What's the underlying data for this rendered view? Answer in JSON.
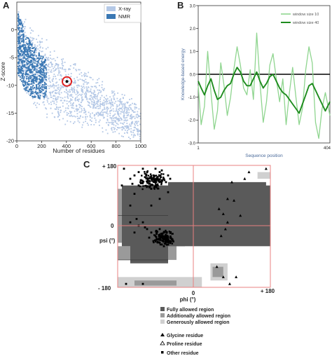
{
  "panels": {
    "a_letter": "A",
    "b_letter": "B",
    "c_letter": "C"
  },
  "chart_data": [
    {
      "panel": "A",
      "type": "scatter",
      "xlabel": "Number of residues",
      "ylabel": "Z-score",
      "xlim": [
        0,
        1000
      ],
      "ylim": [
        -20,
        5
      ],
      "x_ticks": [
        "0",
        "200",
        "400",
        "600",
        "800",
        "1000"
      ],
      "y_ticks": [
        "0",
        "-5",
        "-10",
        "-15",
        "-20"
      ],
      "x_tick_values": [
        0,
        200,
        400,
        600,
        800,
        1000
      ],
      "y_tick_values": [
        0,
        -5,
        -10,
        -15,
        -20
      ],
      "legend": [
        "X-ray",
        "NMR"
      ],
      "legend_position": "top-right",
      "colors": {
        "X-ray": "#b4c8e6",
        "NMR": "#3b78b4",
        "highlight": "#e02020"
      },
      "highlight": {
        "x": 404,
        "y": -9.3
      },
      "xray_band": {
        "x": [
          10,
          100,
          200,
          300,
          400,
          500,
          600,
          700,
          800,
          900,
          1000
        ],
        "y_upper": [
          3,
          0,
          -2,
          -4,
          -5.5,
          -7,
          -8.5,
          -10,
          -11.5,
          -12.5,
          -13.5
        ],
        "y_lower": [
          -8,
          -12,
          -14,
          -15.5,
          -16.5,
          -17,
          -17.5,
          -18,
          -18.5,
          -19,
          -19.5
        ]
      },
      "nmr_band": {
        "x": [
          10,
          60,
          120,
          180,
          240
        ],
        "y_upper": [
          3,
          0,
          -2.5,
          -4,
          -5.5
        ],
        "y_lower": [
          -8,
          -11,
          -12,
          -12.5,
          -12
        ]
      }
    },
    {
      "panel": "B",
      "type": "line",
      "xlabel": "Sequence position",
      "ylabel": "Knowledge-based energy",
      "xlim": [
        1,
        404
      ],
      "ylim": [
        -3,
        3
      ],
      "x_ticks": [
        "1",
        "404"
      ],
      "y_ticks": [
        "3.0",
        "2.0",
        "1.0",
        "0.0",
        "-1.0",
        "-2.0",
        "-3.0"
      ],
      "y_tick_values": [
        3,
        2,
        1,
        0,
        -1,
        -2,
        -3
      ],
      "legend_position": "top-right",
      "series": [
        {
          "name": "window size 10",
          "color": "#8fd58f",
          "x": [
            1,
            10,
            20,
            30,
            40,
            50,
            60,
            70,
            80,
            90,
            100,
            110,
            120,
            130,
            140,
            150,
            160,
            170,
            180,
            190,
            200,
            210,
            220,
            230,
            240,
            250,
            260,
            270,
            280,
            290,
            300,
            310,
            320,
            330,
            340,
            350,
            360,
            370,
            380,
            390,
            404
          ],
          "values": [
            -0.5,
            -2.2,
            -1.4,
            1.0,
            -0.8,
            -2.4,
            -1.6,
            0.5,
            -0.5,
            -1.8,
            -1.0,
            0.2,
            1.2,
            0.4,
            -0.6,
            -0.9,
            0.2,
            -1.1,
            1.8,
            -0.4,
            -2.1,
            -1.2,
            0.4,
            0.9,
            -0.2,
            -1.2,
            -0.2,
            -2.2,
            -0.8,
            0.3,
            -1.0,
            -2.2,
            -1.5,
            0.2,
            1.2,
            0.5,
            -2.1,
            -2.8,
            -1.5,
            -0.8,
            -1.8
          ]
        },
        {
          "name": "window size 40",
          "color": "#1e8c1e",
          "x": [
            1,
            10,
            20,
            30,
            40,
            50,
            60,
            70,
            80,
            90,
            100,
            110,
            120,
            130,
            140,
            150,
            160,
            170,
            180,
            190,
            200,
            210,
            220,
            230,
            240,
            250,
            260,
            270,
            280,
            290,
            300,
            310,
            320,
            330,
            340,
            350,
            360,
            370,
            380,
            390,
            404
          ],
          "values": [
            -0.3,
            -0.6,
            -0.9,
            -0.5,
            -0.2,
            -0.7,
            -1.1,
            -1.0,
            -0.7,
            -0.5,
            -0.4,
            0.0,
            0.3,
            0.1,
            -0.3,
            -0.5,
            -0.5,
            -0.2,
            0.1,
            -0.3,
            -0.6,
            -0.4,
            -0.1,
            0.0,
            -0.3,
            -0.6,
            -0.8,
            -0.9,
            -1.1,
            -1.3,
            -1.5,
            -1.7,
            -1.3,
            -0.9,
            -0.5,
            -0.4,
            -0.7,
            -1.0,
            -1.3,
            -1.6,
            -1.2
          ]
        }
      ]
    },
    {
      "panel": "C",
      "type": "scatter",
      "xlabel": "phi (°)",
      "ylabel": "psi (°)",
      "xlim": [
        -180,
        180
      ],
      "ylim": [
        -180,
        180
      ],
      "x_ticks": [
        "- 180",
        "0",
        "+ 180"
      ],
      "y_ticks": [
        "+ 180",
        "0",
        "- 180"
      ],
      "colors": {
        "fully": "#5a5a5a",
        "additionally": "#9a9a9a",
        "generously": "#d0d0d0",
        "grid": "#e88080",
        "residue": "#000000"
      },
      "regions": {
        "generously": [
          [
            -180,
            -30,
            180,
            90
          ],
          [
            -30,
            10,
            180,
            60
          ],
          [
            -180,
            -180,
            -30,
            -170
          ],
          [
            20,
            40,
            80,
            110
          ],
          [
            40,
            -50,
            90,
            40
          ],
          [
            150,
            160,
            180,
            140
          ],
          [
            40,
            -110,
            80,
            -160
          ],
          [
            -180,
            -180,
            20,
            -150
          ]
        ],
        "additionally": [
          [
            -180,
            -50,
            180,
            110
          ],
          [
            -50,
            -20,
            160,
            120
          ],
          [
            -180,
            -100,
            -40,
            -60
          ],
          [
            -140,
            -160,
            -40,
            -175
          ],
          [
            40,
            30,
            70,
            80
          ],
          [
            50,
            -30,
            70,
            20
          ],
          [
            45,
            -120,
            70,
            -150
          ]
        ],
        "fully": [
          [
            -170,
            -60,
            180,
            120
          ],
          [
            -60,
            -40,
            170,
            130
          ],
          [
            -150,
            -110,
            -60,
            30
          ],
          [
            -100,
            -40,
            -20,
            -60
          ],
          [
            -110,
            -60,
            -70,
            -80
          ]
        ]
      },
      "general_points": [
        [
          -120,
          130
        ],
        [
          -100,
          140
        ],
        [
          -80,
          160
        ],
        [
          -140,
          150
        ],
        [
          -130,
          120
        ],
        [
          -90,
          120
        ],
        [
          -70,
          140
        ],
        [
          -60,
          150
        ],
        [
          -110,
          160
        ],
        [
          -150,
          140
        ],
        [
          -100,
          110
        ],
        [
          -80,
          130
        ],
        [
          -120,
          170
        ],
        [
          -95,
          150
        ],
        [
          -65,
          130
        ],
        [
          -130,
          160
        ],
        [
          -145,
          125
        ],
        [
          -75,
          165
        ],
        [
          -105,
          125
        ],
        [
          -85,
          145
        ],
        [
          -115,
          145
        ],
        [
          -55,
          140
        ],
        [
          -125,
          135
        ],
        [
          -90,
          170
        ],
        [
          -70,
          -40
        ],
        [
          -65,
          -45
        ],
        [
          -60,
          -35
        ],
        [
          -75,
          -30
        ],
        [
          -80,
          -50
        ],
        [
          -55,
          -50
        ],
        [
          -70,
          -20
        ],
        [
          -90,
          -30
        ],
        [
          -100,
          -20
        ],
        [
          -65,
          -30
        ],
        [
          -60,
          -55
        ],
        [
          -85,
          -40
        ],
        [
          -75,
          -55
        ],
        [
          -50,
          -40
        ],
        [
          -95,
          -45
        ],
        [
          -110,
          -10
        ],
        [
          -120,
          10
        ],
        [
          -130,
          0
        ],
        [
          -80,
          -10
        ],
        [
          -140,
          -20
        ],
        [
          -70,
          -60
        ],
        [
          -62,
          -42
        ],
        [
          -68,
          -38
        ],
        [
          -58,
          -46
        ],
        [
          -66,
          -50
        ],
        [
          -72,
          -44
        ],
        [
          -88,
          -15
        ],
        [
          -105,
          -35
        ],
        [
          -115,
          -5
        ],
        [
          -135,
          20
        ],
        [
          -150,
          10
        ],
        [
          -160,
          -170
        ],
        [
          -120,
          -170
        ],
        [
          -60,
          100
        ],
        [
          -80,
          80
        ],
        [
          -150,
          60
        ],
        [
          -100,
          60
        ],
        [
          -170,
          120
        ],
        [
          -165,
          170
        ],
        [
          -140,
          95
        ]
      ],
      "glycine_points": [
        [
          60,
          50
        ],
        [
          70,
          35
        ],
        [
          80,
          10
        ],
        [
          75,
          -10
        ],
        [
          90,
          130
        ],
        [
          170,
          170
        ],
        [
          65,
          -30
        ],
        [
          85,
          -170
        ],
        [
          120,
          140
        ],
        [
          95,
          75
        ],
        [
          130,
          160
        ],
        [
          55,
          -120
        ],
        [
          70,
          -150
        ],
        [
          100,
          -150
        ],
        [
          110,
          30
        ],
        [
          80,
          80
        ]
      ],
      "legend": [
        "Fully allowed region",
        "Additionally allowed region",
        "Generously allowed region",
        "Glycine residue",
        "Proline residue",
        "Other residue"
      ]
    }
  ]
}
